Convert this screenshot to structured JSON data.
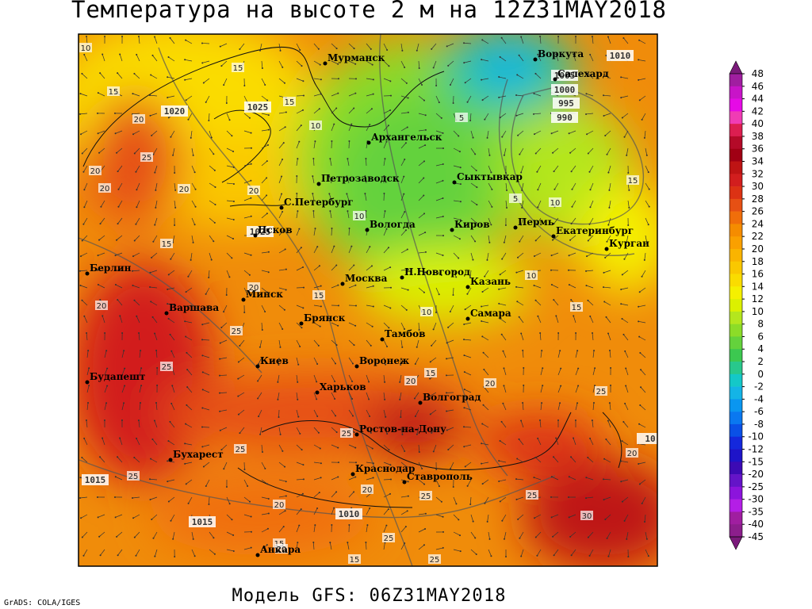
{
  "title": "Температура на высоте 2 м на 12Z31MAY2018",
  "footer": "Модель GFS: 06Z31MAY2018",
  "credit": "GrADS: COLA/IGES",
  "cities": [
    "Мурманск",
    "Воркута",
    "Салехард",
    "Архангельск",
    "Петрозаводск",
    "Сыктывкар",
    "С.Петербург",
    "Вологда",
    "Киров",
    "Пермь",
    "Екатеринбург",
    "Псков",
    "Курган",
    "Берлин",
    "Н.Новгород",
    "Москва",
    "Казань",
    "Минск",
    "Варшава",
    "Самара",
    "Брянск",
    "Тамбов",
    "Киев",
    "Воронеж",
    "Будапешт",
    "Харьков",
    "Волгоград",
    "Ростов-на-Дону",
    "Бухарест",
    "Краснодар",
    "Ставрополь",
    "Анкара"
  ],
  "pressure_labels": [
    1020,
    1025,
    1010,
    1005,
    1000,
    995,
    990,
    1025,
    1015,
    1015,
    1010,
    10
  ],
  "temperature_labels": [
    10,
    15,
    15,
    15,
    20,
    10,
    5,
    25,
    20,
    20,
    20,
    20,
    5,
    10,
    15,
    10,
    15,
    10,
    20,
    20,
    15,
    15,
    10,
    25,
    25,
    15,
    20,
    20,
    25,
    25,
    25,
    20,
    25,
    20,
    25,
    25,
    20,
    30,
    15,
    20,
    25,
    15,
    25
  ],
  "colorbar": {
    "labels": [
      48,
      46,
      44,
      42,
      40,
      38,
      36,
      34,
      32,
      30,
      28,
      26,
      24,
      22,
      20,
      18,
      16,
      14,
      12,
      10,
      8,
      6,
      4,
      2,
      0,
      -2,
      -4,
      -6,
      -8,
      -10,
      -12,
      -15,
      -20,
      -25,
      -30,
      -35,
      -40,
      -45
    ],
    "colors": [
      "#7a1a7a",
      "#a01ea0",
      "#c814c8",
      "#e60ae6",
      "#f03cb4",
      "#dc1e50",
      "#b40a28",
      "#a00014",
      "#be1414",
      "#d21e1e",
      "#dc3214",
      "#e65014",
      "#f06e0a",
      "#f58c00",
      "#faa000",
      "#fab400",
      "#fac800",
      "#fadc00",
      "#f5f000",
      "#dcf000",
      "#b4e61e",
      "#8cdc28",
      "#64d23c",
      "#3cc850",
      "#28c88c",
      "#14c8c8",
      "#14b4e6",
      "#0a96f0",
      "#0a78f0",
      "#0a50e6",
      "#1428dc",
      "#1e14c8",
      "#3c0ab4",
      "#6414c8",
      "#8c14dc",
      "#b41ee6",
      "#a01ea0",
      "#8c1e8c",
      "#7a1a7a"
    ]
  }
}
